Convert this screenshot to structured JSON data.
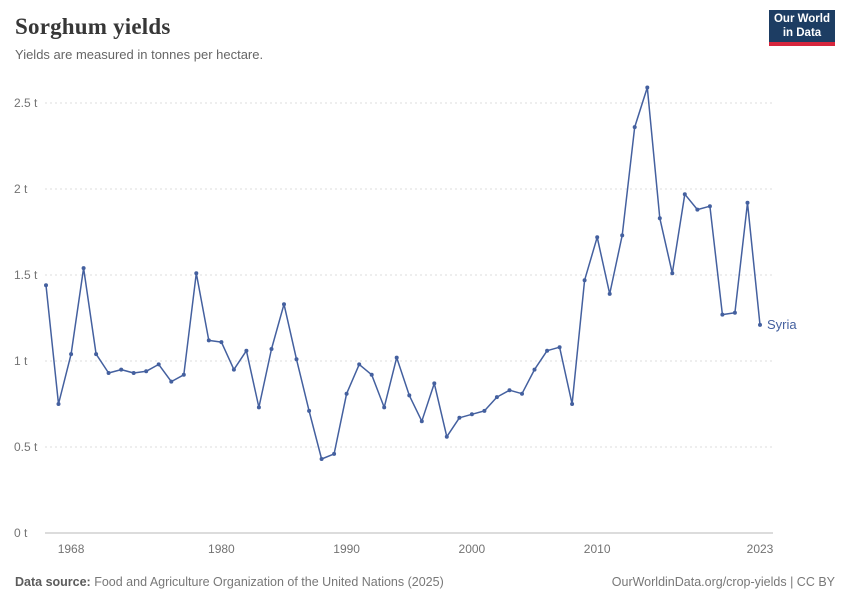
{
  "header": {
    "title": "Sorghum yields",
    "subtitle": "Yields are measured in tonnes per hectare."
  },
  "logo": {
    "line1": "Our World",
    "line2": "in Data",
    "bg_color": "#1d3d63",
    "stripe_color": "#d7263d"
  },
  "chart_data": {
    "type": "line",
    "title": "Sorghum yields",
    "ylabel": "tonnes per hectare",
    "unit": "t",
    "grid": "horizontal-dashed",
    "line_color": "#44609f",
    "grid_color": "#dcdcdc",
    "zero_line_color": "#b8b8b8",
    "axis_text_color": "#737373",
    "xlim": [
      1966,
      2023
    ],
    "ylim": [
      0,
      2.5
    ],
    "x_ticks": [
      1968,
      1980,
      1990,
      2000,
      2010,
      2023
    ],
    "y_ticks": [
      {
        "value": 0,
        "label": "0 t"
      },
      {
        "value": 0.5,
        "label": "0.5 t"
      },
      {
        "value": 1,
        "label": "1 t"
      },
      {
        "value": 1.5,
        "label": "1.5 t"
      },
      {
        "value": 2,
        "label": "2 t"
      },
      {
        "value": 2.5,
        "label": "2.5 t"
      }
    ],
    "x": [
      1966,
      1967,
      1968,
      1969,
      1970,
      1971,
      1972,
      1973,
      1974,
      1975,
      1976,
      1977,
      1978,
      1979,
      1980,
      1981,
      1982,
      1983,
      1984,
      1985,
      1986,
      1987,
      1988,
      1989,
      1990,
      1991,
      1992,
      1993,
      1994,
      1995,
      1996,
      1997,
      1998,
      1999,
      2000,
      2001,
      2002,
      2003,
      2004,
      2005,
      2006,
      2007,
      2008,
      2009,
      2010,
      2011,
      2012,
      2013,
      2014,
      2015,
      2016,
      2017,
      2018,
      2019,
      2020,
      2021,
      2022,
      2023
    ],
    "series": [
      {
        "name": "Syria",
        "values": [
          1.44,
          0.75,
          1.04,
          1.54,
          1.04,
          0.93,
          0.95,
          0.93,
          0.94,
          0.98,
          0.88,
          0.92,
          1.51,
          1.12,
          1.11,
          0.95,
          1.06,
          0.73,
          1.07,
          1.33,
          1.01,
          0.71,
          0.43,
          0.46,
          0.81,
          0.98,
          0.92,
          0.73,
          1.02,
          0.8,
          0.65,
          0.87,
          0.56,
          0.67,
          0.69,
          0.71,
          0.79,
          0.83,
          0.81,
          0.95,
          1.06,
          1.08,
          0.75,
          1.47,
          1.72,
          1.39,
          1.73,
          2.36,
          2.59,
          1.83,
          1.51,
          1.97,
          1.88,
          1.9,
          1.27,
          1.28,
          1.92,
          1.21
        ]
      }
    ]
  },
  "footer": {
    "source_label": "Data source:",
    "source_text": "Food and Agriculture Organization of the United Nations (2025)",
    "right_text": "OurWorldinData.org/crop-yields | CC BY"
  }
}
